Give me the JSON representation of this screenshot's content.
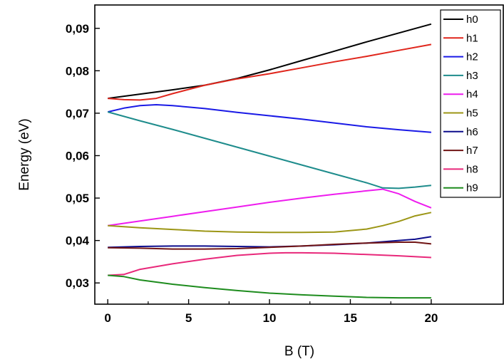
{
  "chart_data": {
    "type": "line",
    "title": "",
    "xlabel": "B (T)",
    "ylabel": "Energy (eV)",
    "xlim": [
      -0.8,
      24.5
    ],
    "ylim": [
      0.025,
      0.0955
    ],
    "xticks": [
      0,
      5,
      10,
      15,
      20
    ],
    "xtick_labels": [
      "0",
      "5",
      "10",
      "15",
      "20"
    ],
    "yticks": [
      0.03,
      0.04,
      0.05,
      0.06,
      0.07,
      0.08,
      0.09
    ],
    "ytick_labels": [
      "0,03",
      "0,04",
      "0,05",
      "0,06",
      "0,07",
      "0,08",
      "0,09"
    ],
    "grid": false,
    "legend_position": "top-right",
    "series": [
      {
        "name": "h0",
        "color": "#000000",
        "x": [
          0,
          2,
          4,
          6,
          8,
          10,
          12,
          14,
          16,
          18,
          20
        ],
        "y": [
          0.0735,
          0.0745,
          0.0755,
          0.0766,
          0.0782,
          0.0802,
          0.0824,
          0.0846,
          0.0868,
          0.0889,
          0.091
        ]
      },
      {
        "name": "h1",
        "color": "#e0261c",
        "x": [
          0,
          1,
          2,
          3,
          4,
          6,
          8,
          10,
          12,
          14,
          16,
          18,
          20
        ],
        "y": [
          0.0735,
          0.0732,
          0.0731,
          0.0735,
          0.0746,
          0.0766,
          0.0781,
          0.0793,
          0.0807,
          0.0821,
          0.0834,
          0.0848,
          0.0862
        ]
      },
      {
        "name": "h2",
        "color": "#1a1ae6",
        "x": [
          0,
          1,
          2,
          3,
          4,
          6,
          8,
          10,
          12,
          14,
          16,
          18,
          20
        ],
        "y": [
          0.0703,
          0.0712,
          0.0718,
          0.072,
          0.0718,
          0.0711,
          0.0702,
          0.0694,
          0.0686,
          0.0677,
          0.0668,
          0.0661,
          0.0655
        ]
      },
      {
        "name": "h3",
        "color": "#1e8c8c",
        "x": [
          0,
          2,
          4,
          6,
          8,
          10,
          12,
          14,
          16,
          17,
          18,
          19,
          20
        ],
        "y": [
          0.0703,
          0.0682,
          0.0662,
          0.0641,
          0.062,
          0.0599,
          0.0578,
          0.0557,
          0.0536,
          0.0524,
          0.0523,
          0.0526,
          0.053
        ]
      },
      {
        "name": "h4",
        "color": "#ee1cee",
        "x": [
          0,
          2,
          4,
          6,
          8,
          10,
          12,
          14,
          16,
          17,
          18,
          19,
          20
        ],
        "y": [
          0.0435,
          0.0446,
          0.0457,
          0.0468,
          0.0479,
          0.049,
          0.05,
          0.0509,
          0.0517,
          0.0521,
          0.051,
          0.0492,
          0.0477
        ]
      },
      {
        "name": "h5",
        "color": "#9c9616",
        "x": [
          0,
          2,
          4,
          6,
          8,
          10,
          12,
          14,
          16,
          17,
          18,
          19,
          20
        ],
        "y": [
          0.0435,
          0.043,
          0.0426,
          0.0422,
          0.042,
          0.0419,
          0.0419,
          0.042,
          0.0427,
          0.0435,
          0.0445,
          0.0458,
          0.0466
        ]
      },
      {
        "name": "h6",
        "color": "#0c0c8c",
        "x": [
          0,
          2,
          4,
          6,
          8,
          10,
          12,
          14,
          16,
          18,
          19,
          20
        ],
        "y": [
          0.0384,
          0.0386,
          0.0387,
          0.0387,
          0.0386,
          0.0385,
          0.0387,
          0.039,
          0.0394,
          0.04,
          0.0403,
          0.0409
        ]
      },
      {
        "name": "h7",
        "color": "#701414",
        "x": [
          0,
          2,
          4,
          6,
          8,
          10,
          12,
          14,
          16,
          18,
          19,
          20
        ],
        "y": [
          0.0383,
          0.0382,
          0.038,
          0.038,
          0.0381,
          0.0384,
          0.0387,
          0.0391,
          0.0394,
          0.0396,
          0.0396,
          0.0392
        ]
      },
      {
        "name": "h8",
        "color": "#e8287a",
        "x": [
          0,
          1,
          2,
          4,
          6,
          8,
          10,
          11,
          12,
          14,
          16,
          18,
          20
        ],
        "y": [
          0.0318,
          0.032,
          0.0332,
          0.0345,
          0.0356,
          0.0365,
          0.037,
          0.0371,
          0.0371,
          0.037,
          0.0367,
          0.0364,
          0.036
        ]
      },
      {
        "name": "h9",
        "color": "#1e8c1e",
        "x": [
          0,
          1,
          2,
          4,
          6,
          8,
          10,
          12,
          14,
          16,
          18,
          20
        ],
        "y": [
          0.0318,
          0.0315,
          0.0307,
          0.0297,
          0.0289,
          0.0282,
          0.0276,
          0.0272,
          0.0269,
          0.0266,
          0.0265,
          0.0265
        ]
      }
    ]
  }
}
